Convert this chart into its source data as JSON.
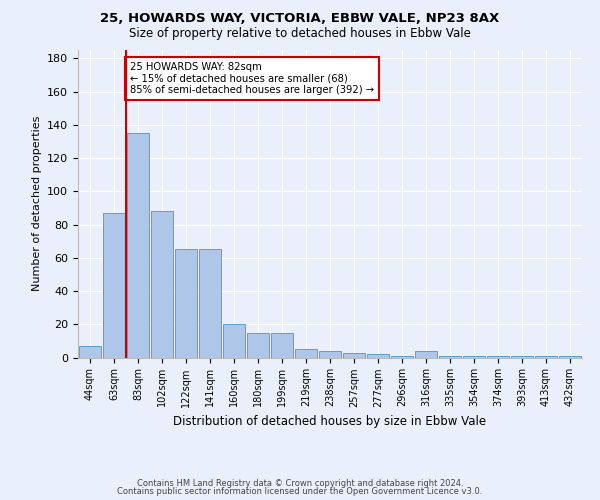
{
  "title1": "25, HOWARDS WAY, VICTORIA, EBBW VALE, NP23 8AX",
  "title2": "Size of property relative to detached houses in Ebbw Vale",
  "xlabel": "Distribution of detached houses by size in Ebbw Vale",
  "ylabel": "Number of detached properties",
  "footer1": "Contains HM Land Registry data © Crown copyright and database right 2024.",
  "footer2": "Contains public sector information licensed under the Open Government Licence v3.0.",
  "bar_labels": [
    "44sqm",
    "63sqm",
    "83sqm",
    "102sqm",
    "122sqm",
    "141sqm",
    "160sqm",
    "180sqm",
    "199sqm",
    "219sqm",
    "238sqm",
    "257sqm",
    "277sqm",
    "296sqm",
    "316sqm",
    "335sqm",
    "354sqm",
    "374sqm",
    "393sqm",
    "413sqm",
    "432sqm"
  ],
  "bar_values": [
    7,
    87,
    135,
    88,
    65,
    65,
    20,
    15,
    15,
    5,
    4,
    3,
    2,
    1,
    4,
    1,
    1,
    1,
    1,
    1,
    1
  ],
  "bar_color": "#aec6e8",
  "bar_edge_color": "#5a9fd4",
  "background_color": "#eaf0fb",
  "grid_color": "#ffffff",
  "property_line_x": 1.5,
  "property_sqm": 82,
  "annotation_title": "25 HOWARDS WAY: 82sqm",
  "annotation_line1": "← 15% of detached houses are smaller (68)",
  "annotation_line2": "85% of semi-detached houses are larger (392) →",
  "annotation_box_color": "#ffffff",
  "annotation_border_color": "#cc0000",
  "vline_color": "#cc0000",
  "ylim": [
    0,
    185
  ],
  "yticks": [
    0,
    20,
    40,
    60,
    80,
    100,
    120,
    140,
    160,
    180
  ]
}
